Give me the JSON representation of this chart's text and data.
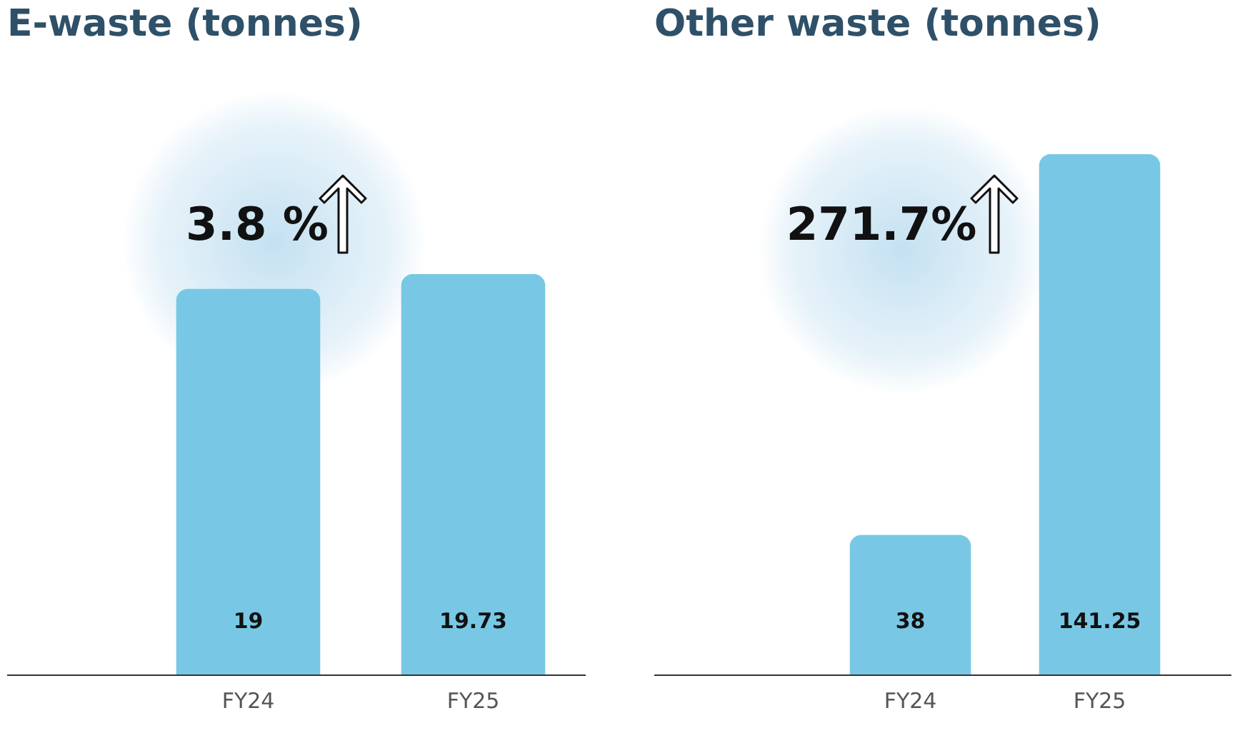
{
  "chart_data": [
    {
      "type": "bar",
      "title": "E-waste (tonnes)",
      "categories": [
        "FY24",
        "FY25"
      ],
      "values": [
        19,
        19.73
      ],
      "color": "#78c8e5",
      "data_labels": true,
      "grid": false,
      "legend": false,
      "tick_labels": "x",
      "annotations": [
        "3.8 %"
      ]
    },
    {
      "type": "bar",
      "title": "Other waste (tonnes)",
      "categories": [
        "FY24",
        "FY25"
      ],
      "values": [
        38,
        141.25
      ],
      "color": "#78c8e5",
      "data_labels": true,
      "grid": false,
      "legend": false,
      "tick_labels": "x",
      "annotations": [
        "271.7%"
      ]
    }
  ]
}
